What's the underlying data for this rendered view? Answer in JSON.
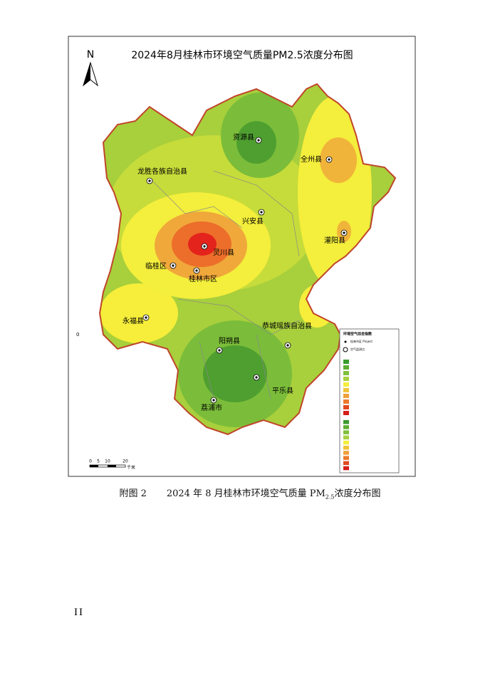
{
  "figure": {
    "title": "2024年8月桂林市环境空气质量PM2.5浓度分布图",
    "north": "N",
    "places": [
      "资源县",
      "全州县",
      "龙胜各族自治县",
      "兴安县",
      "灌阳县",
      "灵川县",
      "临桂区",
      "桂林市区",
      "永福县",
      "恭城瑶族自治县",
      "阳朔县",
      "平乐县",
      "荔浦市"
    ],
    "edge_label": "0",
    "scale": {
      "ticks": [
        "0",
        "5",
        "10",
        "20"
      ],
      "unit": "千米"
    },
    "legend": {
      "title": "环境空气综合指数",
      "symbol": "桂林市区 Project",
      "site": "空气监测点"
    }
  },
  "caption": {
    "label": "附图 2",
    "text": "2024 年 8 月桂林市环境空气质量 PM",
    "sub": "2.5",
    "tail": "浓度分布图"
  },
  "page_number": "II"
}
